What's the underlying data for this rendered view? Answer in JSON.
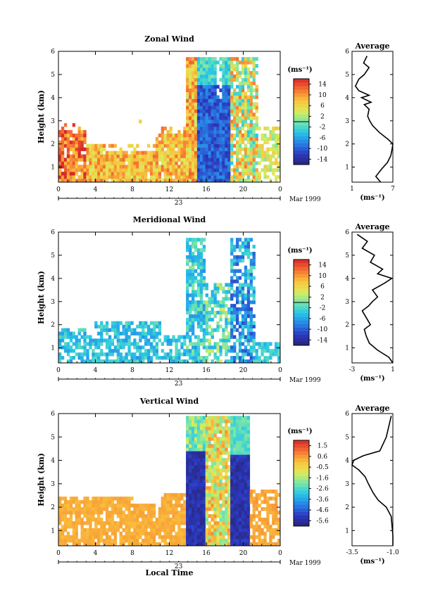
{
  "chart_data": [
    {
      "type": "heatmap",
      "title": "Zonal Wind",
      "ylabel": "Height (km)",
      "xlabel": "",
      "x_ticks": [
        "0",
        "4",
        "8",
        "12",
        "16",
        "20",
        "0"
      ],
      "y_ticks": [
        "1",
        "2",
        "3",
        "4",
        "5",
        "6"
      ],
      "xlim": [
        0,
        24
      ],
      "ylim": [
        0.35,
        6
      ],
      "date_row": {
        "day": "23",
        "month_year": "Mar 1999"
      },
      "colorbar": {
        "unit": "(ms⁻¹)",
        "ticks": [
          "14",
          "10",
          "6",
          "2",
          "-2",
          "-6",
          "-10",
          "-14"
        ],
        "range": [
          -16,
          16
        ],
        "zero_line": 0
      },
      "profile": {
        "title": "Average",
        "xlabel": "(ms⁻¹)",
        "xlim": [
          1,
          7
        ],
        "x_ticks": [
          "1",
          "7"
        ],
        "heights": [
          0.35,
          0.6,
          0.9,
          1.2,
          1.5,
          1.8,
          2.0,
          2.2,
          2.5,
          2.8,
          3.0,
          3.2,
          3.5,
          3.7,
          3.8,
          4.0,
          4.1,
          4.3,
          4.5,
          4.8,
          5.0,
          5.3,
          5.5,
          5.8
        ],
        "values": [
          5.2,
          4.5,
          5.3,
          6.2,
          6.7,
          6.9,
          7.0,
          6.3,
          5.0,
          4.0,
          3.6,
          3.3,
          3.5,
          2.8,
          3.8,
          2.4,
          3.5,
          2.0,
          1.5,
          2.0,
          2.8,
          3.5,
          2.7,
          3.2
        ]
      }
    },
    {
      "type": "heatmap",
      "title": "Meridional Wind",
      "ylabel": "Height (km)",
      "xlabel": "",
      "x_ticks": [
        "0",
        "4",
        "8",
        "12",
        "16",
        "20",
        "0"
      ],
      "y_ticks": [
        "1",
        "2",
        "3",
        "4",
        "5",
        "6"
      ],
      "xlim": [
        0,
        24
      ],
      "ylim": [
        0.35,
        6
      ],
      "date_row": {
        "day": "23",
        "month_year": "Mar 1999"
      },
      "colorbar": {
        "unit": "(ms⁻¹)",
        "ticks": [
          "14",
          "10",
          "6",
          "2",
          "-2",
          "-6",
          "-10",
          "-14"
        ],
        "range": [
          -16,
          16
        ],
        "zero_line": 0
      },
      "profile": {
        "title": "Average",
        "xlabel": "(ms⁻¹)",
        "xlim": [
          -3,
          1
        ],
        "x_ticks": [
          "-3",
          "1"
        ],
        "heights": [
          0.35,
          0.6,
          0.9,
          1.2,
          1.5,
          1.8,
          2.0,
          2.3,
          2.6,
          2.8,
          3.0,
          3.2,
          3.5,
          3.8,
          4.0,
          4.2,
          4.4,
          4.7,
          5.0,
          5.3,
          5.6,
          5.9
        ],
        "values": [
          1.0,
          0.6,
          -0.5,
          -1.3,
          -1.6,
          -1.8,
          -1.2,
          -1.6,
          -2.0,
          -1.4,
          -1.0,
          -0.5,
          -1.0,
          0.2,
          0.9,
          -0.5,
          0.0,
          -1.2,
          -0.8,
          -2.0,
          -1.5,
          -2.5
        ]
      }
    },
    {
      "type": "heatmap",
      "title": "Vertical Wind",
      "ylabel": "Height (km)",
      "xlabel": "Local Time",
      "x_ticks": [
        "0",
        "4",
        "8",
        "12",
        "16",
        "20",
        "0"
      ],
      "y_ticks": [
        "1",
        "2",
        "3",
        "4",
        "5",
        "6"
      ],
      "xlim": [
        0,
        24
      ],
      "ylim": [
        0.35,
        6
      ],
      "date_row": {
        "day": "23",
        "month_year": "Mar 1999"
      },
      "colorbar": {
        "unit": "(ms⁻¹)",
        "ticks": [
          "1.5",
          "0.6",
          "-0.5",
          "-1.6",
          "-2.6",
          "-3.6",
          "-4.6",
          "-5.6"
        ],
        "range": [
          -6.2,
          2.0
        ]
      },
      "profile": {
        "title": "Average",
        "xlabel": "(ms⁻¹)",
        "xlim": [
          -3.5,
          -1.0
        ],
        "x_ticks": [
          "-3.5",
          "-1.0"
        ],
        "heights": [
          0.35,
          0.8,
          1.2,
          1.6,
          2.0,
          2.3,
          2.6,
          3.0,
          3.3,
          3.6,
          3.8,
          4.0,
          4.2,
          4.4,
          4.7,
          5.0,
          5.3,
          5.6,
          5.9
        ],
        "values": [
          -1.0,
          -1.0,
          -1.05,
          -1.1,
          -1.4,
          -1.9,
          -2.2,
          -2.5,
          -2.7,
          -3.1,
          -3.5,
          -3.4,
          -2.8,
          -1.8,
          -1.6,
          -1.4,
          -1.3,
          -1.2,
          -1.1
        ]
      }
    }
  ]
}
